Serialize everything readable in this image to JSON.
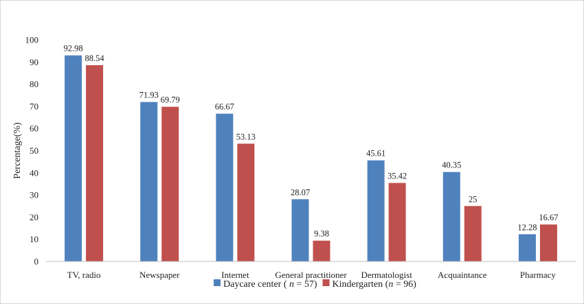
{
  "chart_data": {
    "type": "bar",
    "title": "",
    "xlabel": "",
    "ylabel": "Percentage(%)",
    "ylim": [
      0,
      100
    ],
    "yticks": [
      0,
      10,
      20,
      30,
      40,
      50,
      60,
      70,
      80,
      90,
      100
    ],
    "grid": false,
    "legend_position": "bottom",
    "categories": [
      "TV, radio",
      "Newspaper",
      "Internet",
      "General practitioner",
      "Dermatologist",
      "Acquaintance",
      "Pharmacy"
    ],
    "series": [
      {
        "name": "Daycare center ( n = 57)",
        "legend_prefix": "Daycare center ( ",
        "legend_italic": "n",
        "legend_suffix": " = 57)",
        "color": "#4f81bd",
        "values": [
          92.98,
          71.93,
          66.67,
          28.07,
          45.61,
          40.35,
          12.28
        ],
        "labels": [
          "92.98",
          "71.93",
          "66.67",
          "28.07",
          "45.61",
          "40.35",
          "12.28"
        ]
      },
      {
        "name": "Kindergarten (n = 96)",
        "legend_prefix": "Kindergarten (",
        "legend_italic": "n",
        "legend_suffix": " = 96)",
        "color": "#c0504d",
        "values": [
          88.54,
          69.79,
          53.13,
          9.38,
          35.42,
          25,
          16.67
        ],
        "labels": [
          "88.54",
          "69.79",
          "53.13",
          "9.38",
          "35.42",
          "25",
          "16.67"
        ]
      }
    ]
  }
}
